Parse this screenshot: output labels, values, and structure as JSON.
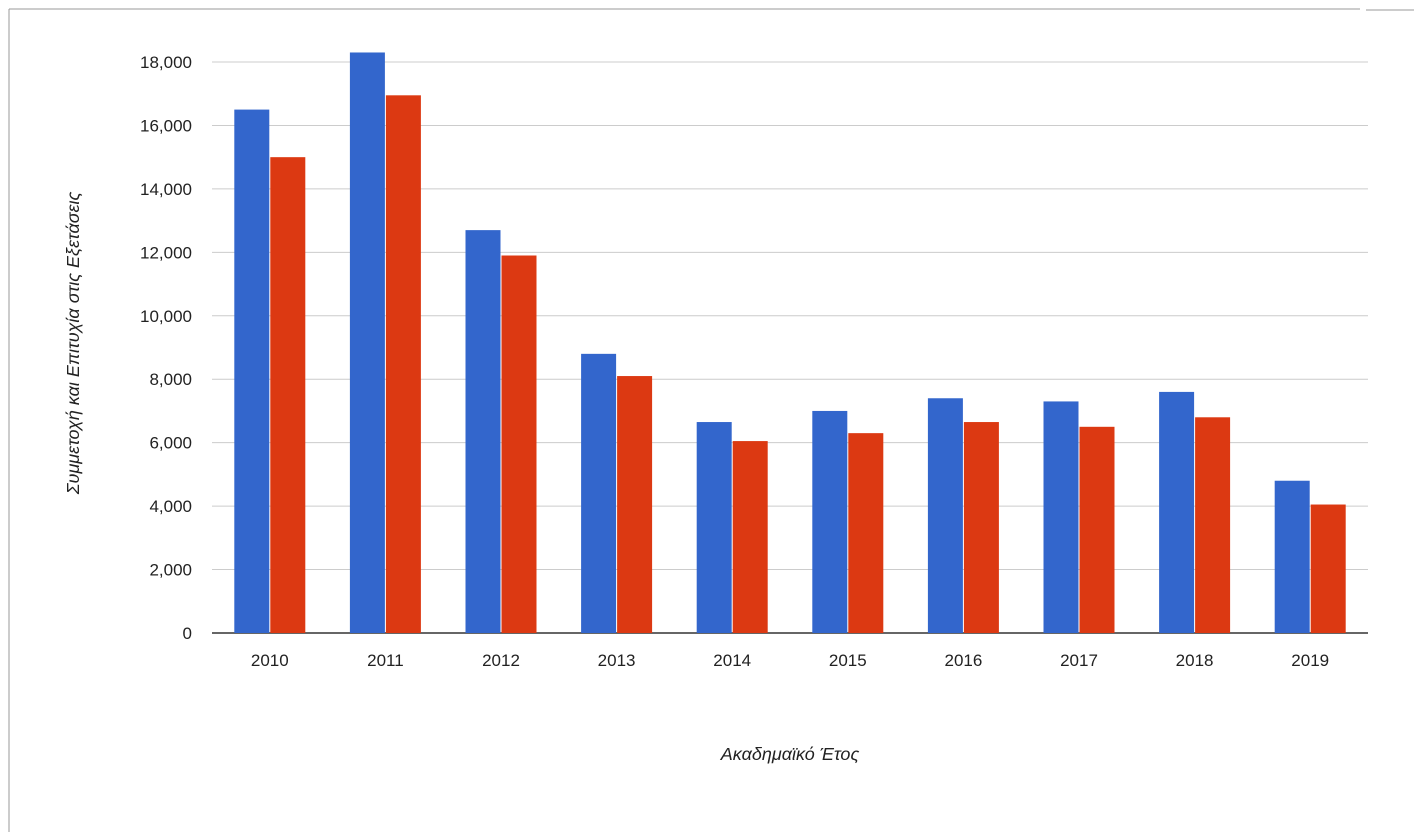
{
  "chart_data": {
    "type": "bar",
    "title": "",
    "xlabel": "Ακαδημαϊκό Έτος",
    "ylabel": "Συμμετοχή και Επιτυχία στις Εξετάσεις",
    "categories": [
      "2010",
      "2011",
      "2012",
      "2013",
      "2014",
      "2015",
      "2016",
      "2017",
      "2018",
      "2019"
    ],
    "series": [
      {
        "color": "#3366cc",
        "values": [
          16500,
          18300,
          12700,
          8800,
          6650,
          7000,
          7400,
          7300,
          7600,
          4800
        ]
      },
      {
        "color": "#dc3912",
        "values": [
          15000,
          16950,
          11900,
          8100,
          6050,
          6300,
          6650,
          6500,
          6800,
          4050
        ]
      }
    ],
    "ylim": [
      0,
      18000
    ],
    "yticks": [
      0,
      2000,
      4000,
      6000,
      8000,
      10000,
      12000,
      14000,
      16000,
      18000
    ],
    "ytick_labels": [
      "0",
      "2,000",
      "4,000",
      "6,000",
      "8,000",
      "10,000",
      "12,000",
      "14,000",
      "16,000",
      "18,000"
    ],
    "grid": true,
    "legend": "none"
  },
  "colors": {
    "grid": "#cccccc",
    "baseline": "#333333",
    "frame": "#999999"
  }
}
